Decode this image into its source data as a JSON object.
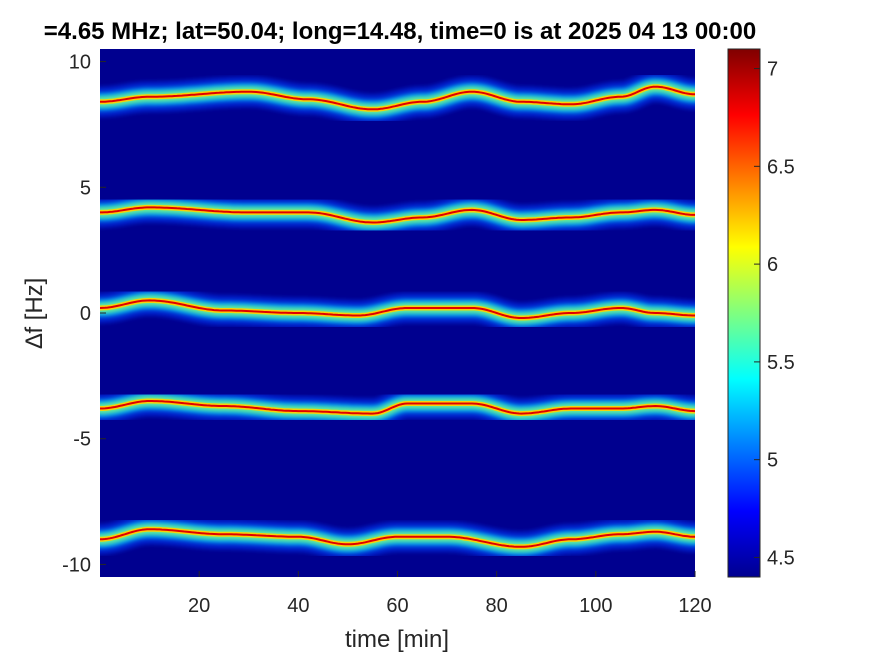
{
  "chart_data": {
    "type": "heatmap",
    "title": "=4.65 MHz;  lat=50.04; long=14.48, time=0 is at 2025 04 13 00:00",
    "xlabel": "time [min]",
    "ylabel": "∆f [Hz]",
    "xlim": [
      0,
      120
    ],
    "ylim": [
      -10.5,
      10.5
    ],
    "xticks": [
      20,
      40,
      60,
      80,
      100,
      120
    ],
    "xtick_labels": [
      "20",
      "40",
      "60",
      "80",
      "100",
      "120"
    ],
    "yticks": [
      -10,
      -5,
      0,
      5,
      10
    ],
    "ytick_labels": [
      "-10",
      "-5",
      "0",
      "5",
      "10"
    ],
    "grid": false,
    "colormap": "jet",
    "background_color": "#00008f",
    "colorbar": {
      "min": 4.4,
      "max": 7.1,
      "ticks": [
        4.5,
        5,
        5.5,
        6,
        6.5,
        7
      ],
      "tick_labels": [
        "4.5",
        "5",
        "5.5",
        "6",
        "6.5",
        "7"
      ]
    },
    "series": [
      {
        "x": [
          0,
          10,
          30,
          42,
          55,
          65,
          75,
          85,
          95,
          105,
          112,
          120
        ],
        "y": [
          8.4,
          8.6,
          8.8,
          8.5,
          8.1,
          8.4,
          8.8,
          8.4,
          8.3,
          8.6,
          9.0,
          8.7
        ]
      },
      {
        "x": [
          0,
          10,
          30,
          42,
          55,
          65,
          75,
          85,
          95,
          105,
          112,
          120
        ],
        "y": [
          4.0,
          4.2,
          4.0,
          4.0,
          3.6,
          3.8,
          4.1,
          3.7,
          3.8,
          4.0,
          4.1,
          3.9
        ]
      },
      {
        "x": [
          0,
          10,
          25,
          40,
          52,
          62,
          75,
          85,
          95,
          105,
          112,
          120
        ],
        "y": [
          0.2,
          0.5,
          0.1,
          0.0,
          -0.1,
          0.2,
          0.2,
          -0.2,
          0.0,
          0.2,
          0.0,
          -0.1
        ]
      },
      {
        "x": [
          0,
          10,
          25,
          40,
          55,
          62,
          75,
          85,
          95,
          105,
          112,
          120
        ],
        "y": [
          -3.8,
          -3.5,
          -3.7,
          -3.9,
          -4.0,
          -3.6,
          -3.6,
          -4.0,
          -3.8,
          -3.8,
          -3.7,
          -3.9
        ]
      },
      {
        "x": [
          0,
          10,
          25,
          40,
          50,
          60,
          70,
          85,
          95,
          105,
          112,
          120
        ],
        "y": [
          -9.0,
          -8.6,
          -8.8,
          -8.9,
          -9.2,
          -8.9,
          -8.9,
          -9.3,
          -9.0,
          -8.8,
          -8.7,
          -8.9
        ]
      }
    ]
  }
}
